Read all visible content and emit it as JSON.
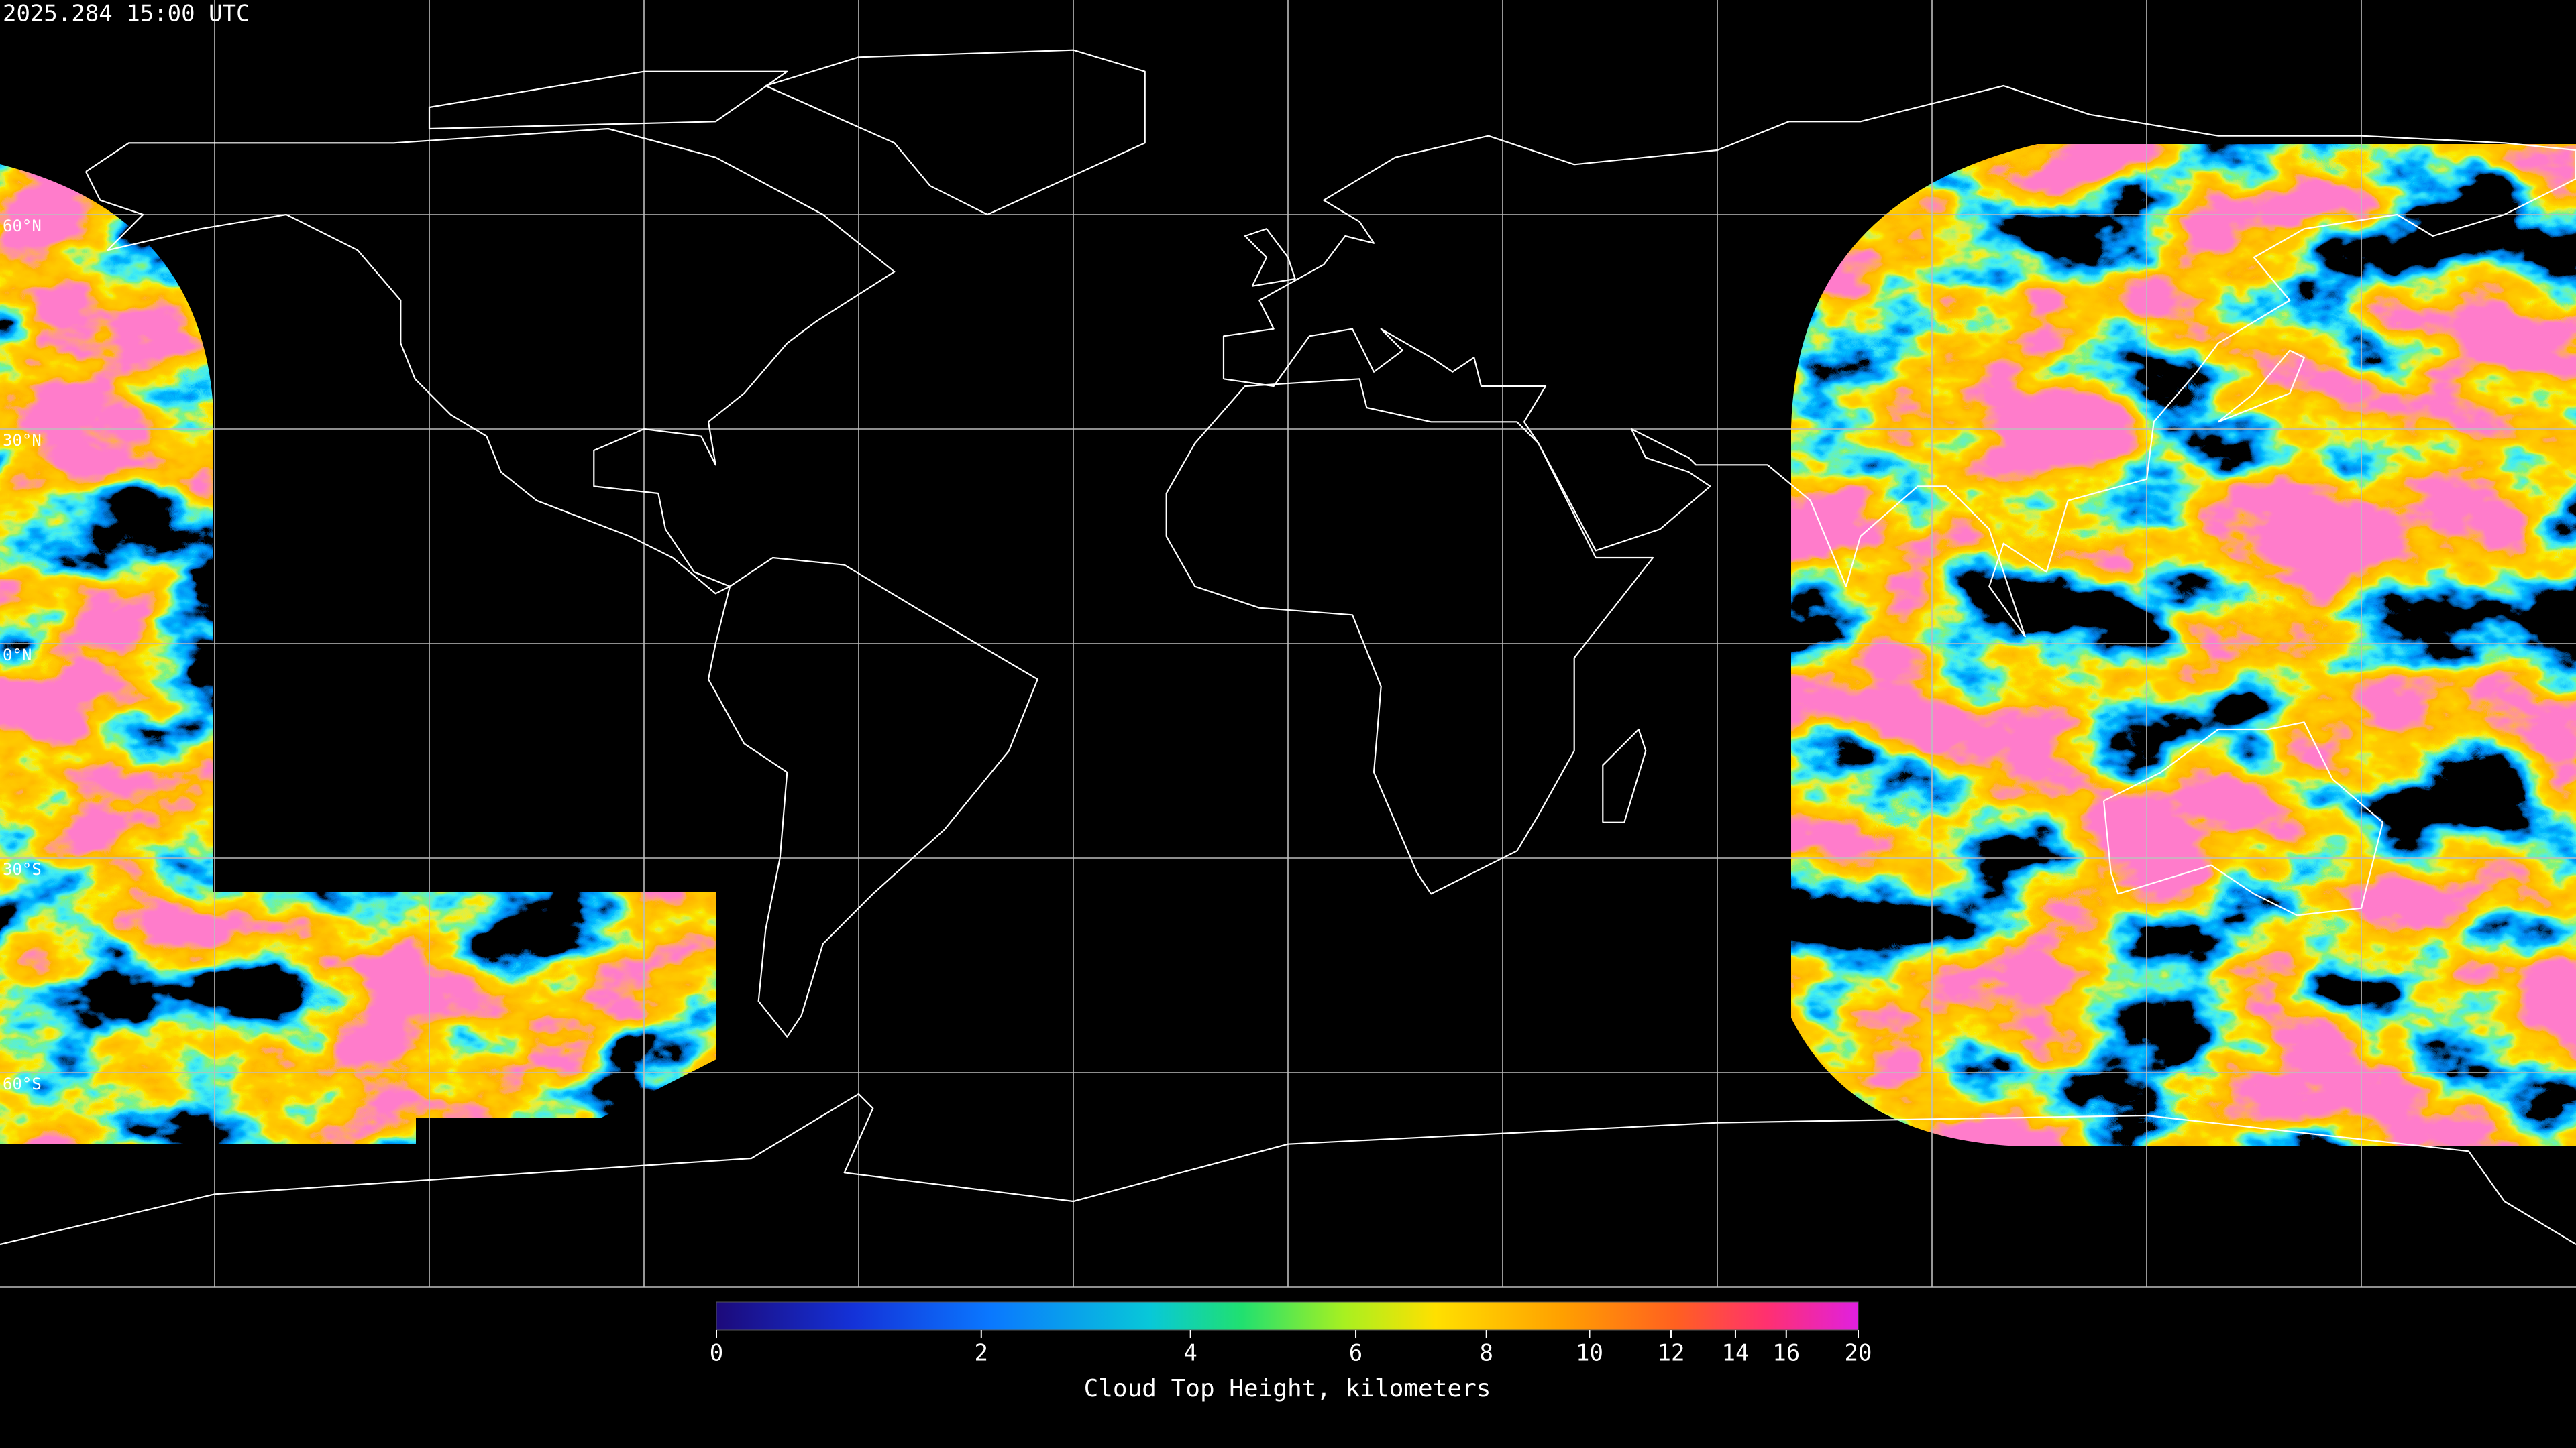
{
  "timestamp": "2025.284 15:00 UTC",
  "map": {
    "parallels": [
      {
        "value": 60,
        "label": "60°N"
      },
      {
        "value": 30,
        "label": "30°N"
      },
      {
        "value": 0,
        "label": "0°N"
      },
      {
        "value": -30,
        "label": "30°S"
      },
      {
        "value": -60,
        "label": "60°S"
      }
    ]
  },
  "colorbar": {
    "title": "Cloud Top Height, kilometers",
    "range": [
      0,
      20
    ],
    "ticks": [
      0,
      2,
      4,
      6,
      8,
      10,
      12,
      14,
      16,
      20
    ]
  }
}
